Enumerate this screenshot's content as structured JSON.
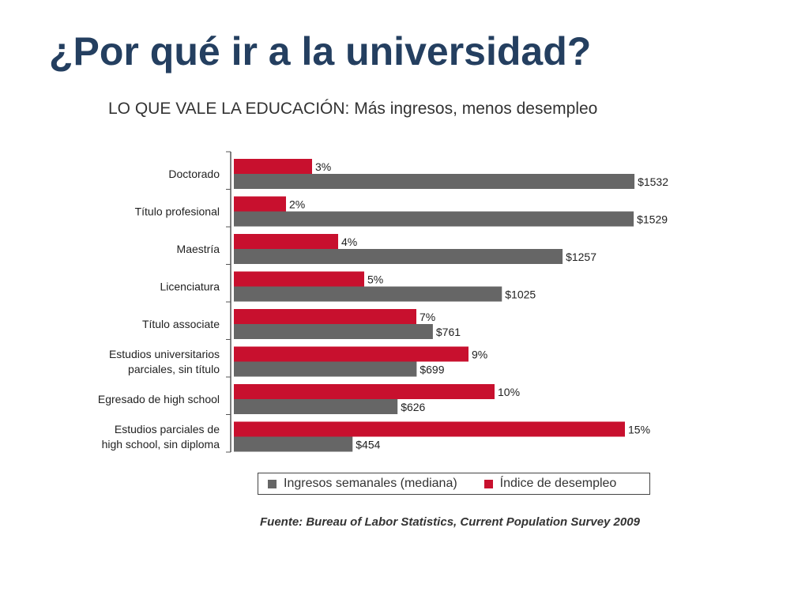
{
  "slide": {
    "title": "¿Por qué ir a la universidad?"
  },
  "chart_data": {
    "type": "bar",
    "orientation": "horizontal",
    "title": "LO QUE VALE LA EDUCACIÓN: Más ingresos, menos desempleo",
    "categories": [
      [
        "Doctorado"
      ],
      [
        "Título profesional"
      ],
      [
        "Maestría"
      ],
      [
        "Licenciatura"
      ],
      [
        "Título associate"
      ],
      [
        "Estudios universitarios",
        "parciales, sin título"
      ],
      [
        "Egresado de high school"
      ],
      [
        "Estudios parciales de",
        "high school, sin diploma"
      ]
    ],
    "series": [
      {
        "name": "Índice de desempleo",
        "color": "#c8102e",
        "values": [
          3,
          2,
          4,
          5,
          7,
          9,
          10,
          15
        ],
        "labels": [
          "3%",
          "2%",
          "4%",
          "5%",
          "7%",
          "9%",
          "10%",
          "15%"
        ]
      },
      {
        "name": "Ingresos semanales (mediana)",
        "color": "#666666",
        "values": [
          1532,
          1529,
          1257,
          1025,
          761,
          699,
          626,
          454
        ],
        "labels": [
          "$1532",
          "$1529",
          "$1257",
          "$1025",
          "$761",
          "$699",
          "$626",
          "$454"
        ]
      }
    ],
    "legend": [
      {
        "label": "Ingresos semanales (mediana)",
        "color": "#666666"
      },
      {
        "label": "Índice de desempleo",
        "color": "#c8102e"
      }
    ],
    "source": "Fuente: Bureau of Labor Statistics, Current Population Survey 2009"
  }
}
